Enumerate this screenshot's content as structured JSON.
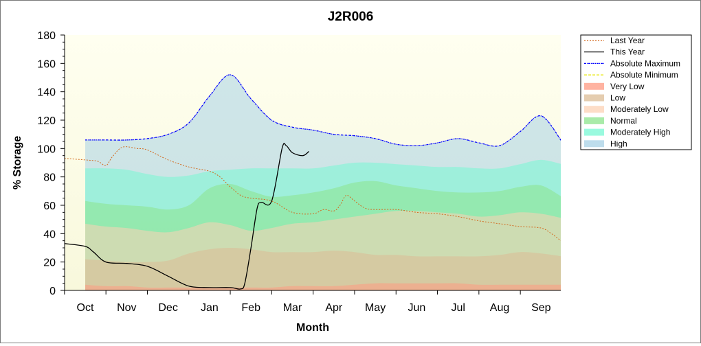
{
  "chart_data": {
    "type": "area",
    "title": "J2R006",
    "xlabel": "Month",
    "ylabel": "% Storage",
    "ylim": [
      0,
      180
    ],
    "yticks": [
      0,
      20,
      40,
      60,
      80,
      100,
      120,
      140,
      160,
      180
    ],
    "xlim": [
      0,
      12
    ],
    "months": [
      "Oct",
      "Nov",
      "Dec",
      "Jan",
      "Feb",
      "Mar",
      "Apr",
      "May",
      "Jun",
      "Jul",
      "Aug",
      "Sep"
    ],
    "grid": false,
    "legend_position": "right",
    "colors": {
      "plot_bg_top": "#fffff0",
      "plot_bg_bottom": "#fafade",
      "very_low": "#ff9a82",
      "low": "#dcbc96",
      "moderately_low": "#fcd2b4",
      "normal": "#8ce48c",
      "moderately_high": "#78f8d4",
      "high": "#a8d2e6",
      "last_year": "#d2691e",
      "this_year": "#000000",
      "absolute_maximum": "#0000ff",
      "absolute_minimum": "#e6e600"
    },
    "legend": [
      {
        "label": "Last Year",
        "kind": "line",
        "key": "last_year",
        "dash": "2,2"
      },
      {
        "label": "This Year",
        "kind": "line",
        "key": "this_year",
        "dash": ""
      },
      {
        "label": "Absolute Maximum",
        "kind": "line",
        "key": "absolute_maximum",
        "dash": "3,1,1,1"
      },
      {
        "label": "Absolute Minimum",
        "kind": "line",
        "key": "absolute_minimum",
        "dash": "4,2"
      },
      {
        "label": "Very Low",
        "kind": "band",
        "key": "very_low"
      },
      {
        "label": "Low",
        "kind": "band",
        "key": "low"
      },
      {
        "label": "Moderately Low",
        "kind": "band",
        "key": "moderately_low"
      },
      {
        "label": "Normal",
        "kind": "band",
        "key": "normal"
      },
      {
        "label": "Moderately High",
        "kind": "band",
        "key": "moderately_high"
      },
      {
        "label": "High",
        "kind": "band",
        "key": "high"
      }
    ],
    "band_x": [
      0.0,
      0.5,
      1.0,
      1.5,
      2.0,
      2.5,
      3.0,
      3.5,
      4.0,
      4.5,
      5.0,
      5.5,
      6.0,
      6.5,
      7.0,
      7.5,
      8.0,
      8.5,
      9.0,
      9.5,
      10.0,
      10.5,
      11.0,
      11.5
    ],
    "bands": [
      {
        "key": "very_low",
        "upper": [
          4,
          3,
          3,
          2,
          2,
          2,
          2,
          2,
          2,
          2,
          3,
          3,
          3,
          4,
          5,
          5,
          5,
          5,
          5,
          4,
          4,
          4,
          4,
          4
        ]
      },
      {
        "key": "low",
        "upper": [
          22,
          21,
          20,
          20,
          21,
          26,
          29,
          30,
          29,
          27,
          27,
          27,
          28,
          27,
          25,
          25,
          24,
          24,
          24,
          24,
          25,
          27,
          26,
          24
        ]
      },
      {
        "key": "moderately_low",
        "upper": [
          47,
          45,
          44,
          42,
          41,
          44,
          48,
          46,
          42,
          44,
          47,
          48,
          50,
          52,
          54,
          56,
          56,
          55,
          54,
          52,
          53,
          55,
          54,
          51
        ]
      },
      {
        "key": "normal",
        "upper": [
          63,
          61,
          60,
          59,
          57,
          60,
          72,
          75,
          70,
          66,
          67,
          69,
          72,
          76,
          77,
          74,
          72,
          70,
          69,
          69,
          70,
          73,
          74,
          66
        ]
      },
      {
        "key": "moderately_high",
        "upper": [
          86,
          86,
          85,
          82,
          80,
          81,
          84,
          85,
          86,
          86,
          86,
          86,
          88,
          90,
          90,
          89,
          88,
          87,
          87,
          86,
          86,
          89,
          92,
          89
        ]
      },
      {
        "key": "high",
        "upper": [
          106,
          106,
          106,
          107,
          110,
          118,
          137,
          152,
          135,
          120,
          115,
          113,
          110,
          109,
          107,
          103,
          102,
          104,
          107,
          104,
          102,
          112,
          123,
          105
        ]
      }
    ],
    "series": [
      {
        "name": "Last Year",
        "key": "last_year",
        "x": [
          -0.5,
          0.0,
          0.3,
          0.5,
          0.65,
          0.9,
          1.25,
          1.5,
          2.0,
          2.5,
          3.0,
          3.25,
          3.5,
          3.75,
          4.0,
          4.5,
          5.0,
          5.5,
          5.75,
          6.0,
          6.15,
          6.3,
          6.5,
          6.75,
          7.0,
          7.5,
          8.0,
          8.5,
          9.0,
          9.5,
          10.0,
          10.5,
          11.0,
          11.25,
          11.5,
          11.75
        ],
        "y": [
          93,
          92,
          91,
          88,
          94,
          101,
          100,
          99,
          92,
          87,
          84,
          80,
          73,
          67,
          65,
          63,
          55,
          54,
          57,
          56,
          60,
          67,
          63,
          58,
          57,
          57,
          55,
          54,
          52,
          49,
          47,
          45,
          44,
          40,
          35,
          34
        ]
      },
      {
        "name": "This Year",
        "key": "this_year",
        "x": [
          -0.5,
          0.0,
          0.2,
          0.5,
          1.0,
          1.5,
          2.0,
          2.5,
          3.0,
          3.5,
          3.75,
          3.85,
          4.0,
          4.15,
          4.25,
          4.5,
          4.75,
          4.85,
          5.0,
          5.25,
          5.4
        ],
        "y": [
          33,
          31,
          27,
          20,
          19,
          17,
          10,
          3,
          2,
          2,
          1,
          5,
          30,
          58,
          62,
          63,
          100,
          102,
          97,
          95,
          98
        ]
      },
      {
        "name": "Absolute Maximum",
        "key": "absolute_maximum",
        "x": [
          0.0,
          0.5,
          1.0,
          1.5,
          2.0,
          2.5,
          3.0,
          3.5,
          4.0,
          4.5,
          5.0,
          5.5,
          6.0,
          6.5,
          7.0,
          7.5,
          8.0,
          8.5,
          9.0,
          9.5,
          10.0,
          10.5,
          11.0,
          11.5
        ],
        "y": [
          106,
          106,
          106,
          107,
          110,
          118,
          137,
          152,
          135,
          120,
          115,
          113,
          110,
          109,
          107,
          103,
          102,
          104,
          107,
          104,
          102,
          112,
          123,
          105
        ]
      }
    ]
  }
}
